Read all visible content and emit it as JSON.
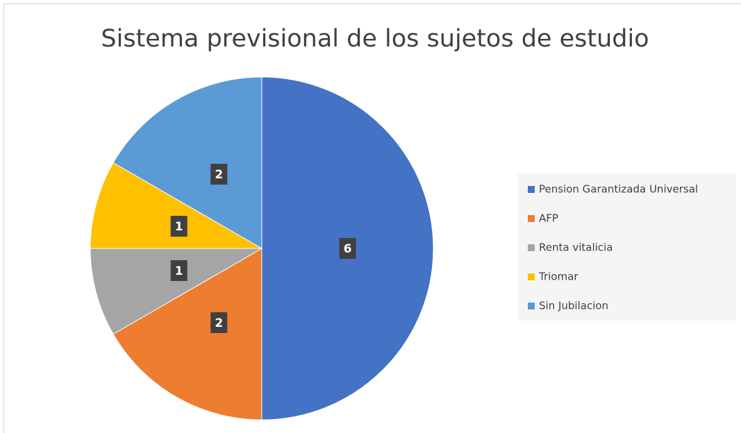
{
  "chart_data": {
    "type": "pie",
    "title": "Sistema previsional de los sujetos de estudio",
    "categories": [
      "Pension Garantizada Universal",
      "AFP",
      "Renta vitalicia",
      "Triomar",
      "Sin Jubilacion"
    ],
    "values": [
      6,
      2,
      1,
      1,
      2
    ],
    "colors": [
      "#4472c4",
      "#ed7d31",
      "#a5a5a5",
      "#ffc000",
      "#5b9bd5"
    ],
    "legend": "right"
  }
}
